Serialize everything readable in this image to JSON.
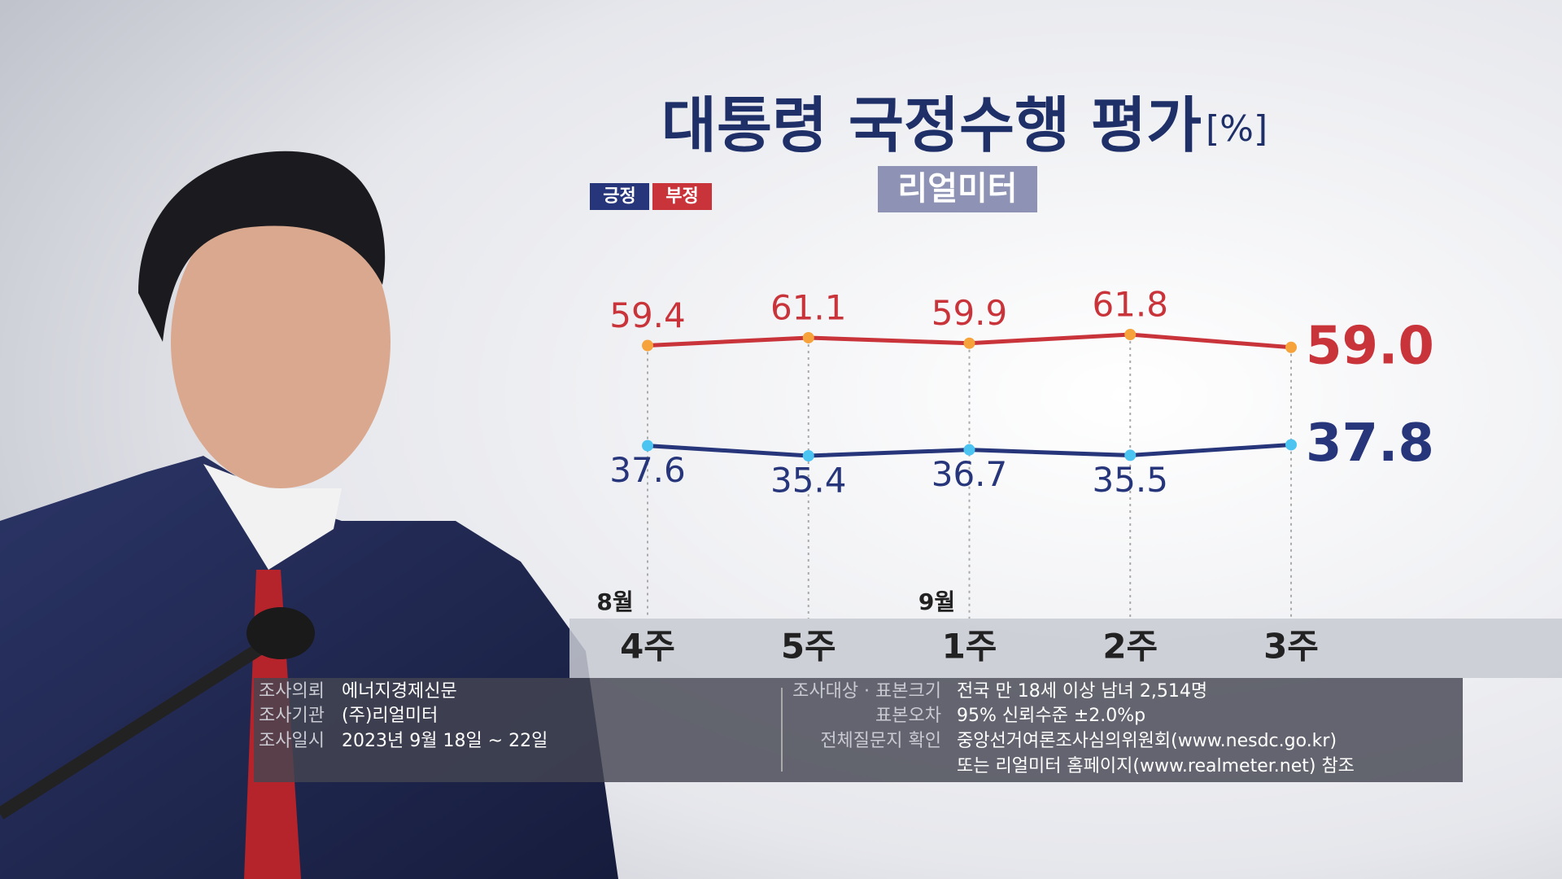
{
  "chart_data": {
    "type": "line",
    "title": "대통령 국정수행 평가",
    "unit": "[%]",
    "subtitle": "리얼미터",
    "categories": [
      "4주",
      "5주",
      "1주",
      "2주",
      "3주"
    ],
    "month_labels": [
      "8월",
      null,
      "9월",
      null,
      null
    ],
    "series": [
      {
        "name": "긍정",
        "color": "#27367a",
        "marker_color": "#4cc4f2",
        "values": [
          37.6,
          35.4,
          36.7,
          35.5,
          37.8
        ]
      },
      {
        "name": "부정",
        "color": "#c9343b",
        "marker_color": "#f5a33a",
        "values": [
          59.4,
          61.1,
          59.9,
          61.8,
          59.0
        ],
        "value_labels": [
          "59.4",
          "61.1",
          "59.9",
          "61.8",
          "59.0"
        ]
      }
    ]
  },
  "footer": {
    "left": [
      {
        "label": "조사의뢰",
        "value": "에너지경제신문"
      },
      {
        "label": "조사기관",
        "value": "(주)리얼미터"
      },
      {
        "label": "조사일시",
        "value": "2023년 9월 18일 ~ 22일"
      }
    ],
    "right": [
      {
        "label": "조사대상 · 표본크기",
        "value": "전국 만 18세 이상 남녀 2,514명"
      },
      {
        "label": "표본오차",
        "value": "95% 신뢰수준 ±2.0%p"
      },
      {
        "label": "전체질문지 확인",
        "value": "중앙선거여론조사심의위원회(www.nesdc.go.kr)"
      },
      {
        "label": null,
        "value": "또는 리얼미터 홈페이지(www.realmeter.net) 참조"
      }
    ]
  }
}
